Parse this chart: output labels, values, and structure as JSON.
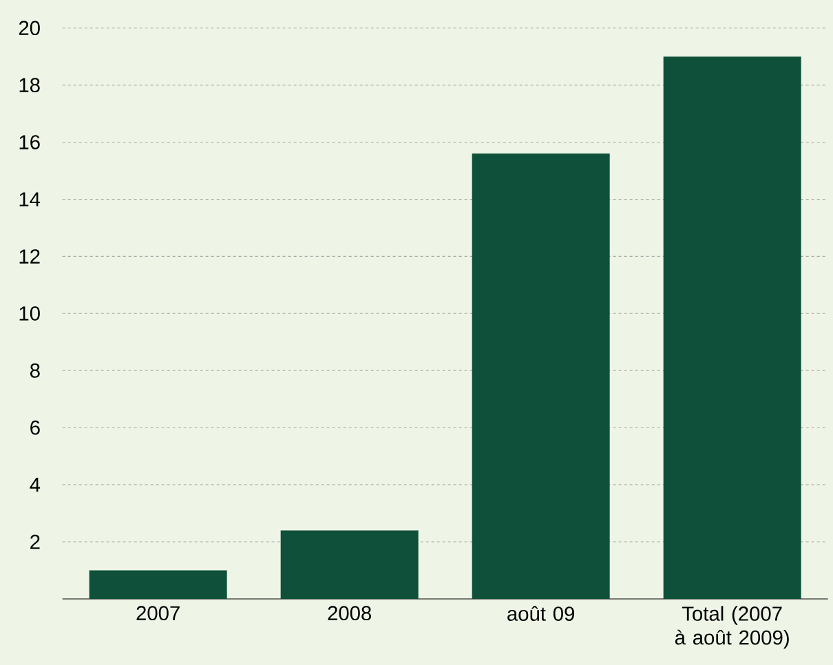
{
  "chart_data": {
    "type": "bar",
    "categories": [
      "2007",
      "2008",
      "août 09",
      "Total (2007 à août 2009)"
    ],
    "values": [
      1.0,
      2.4,
      15.6,
      19.0
    ],
    "color": "#0e5039",
    "ylim": [
      0,
      20
    ],
    "yticks": [
      2,
      4,
      6,
      8,
      10,
      12,
      14,
      16,
      18,
      20
    ],
    "grid": "y",
    "legend": false
  }
}
